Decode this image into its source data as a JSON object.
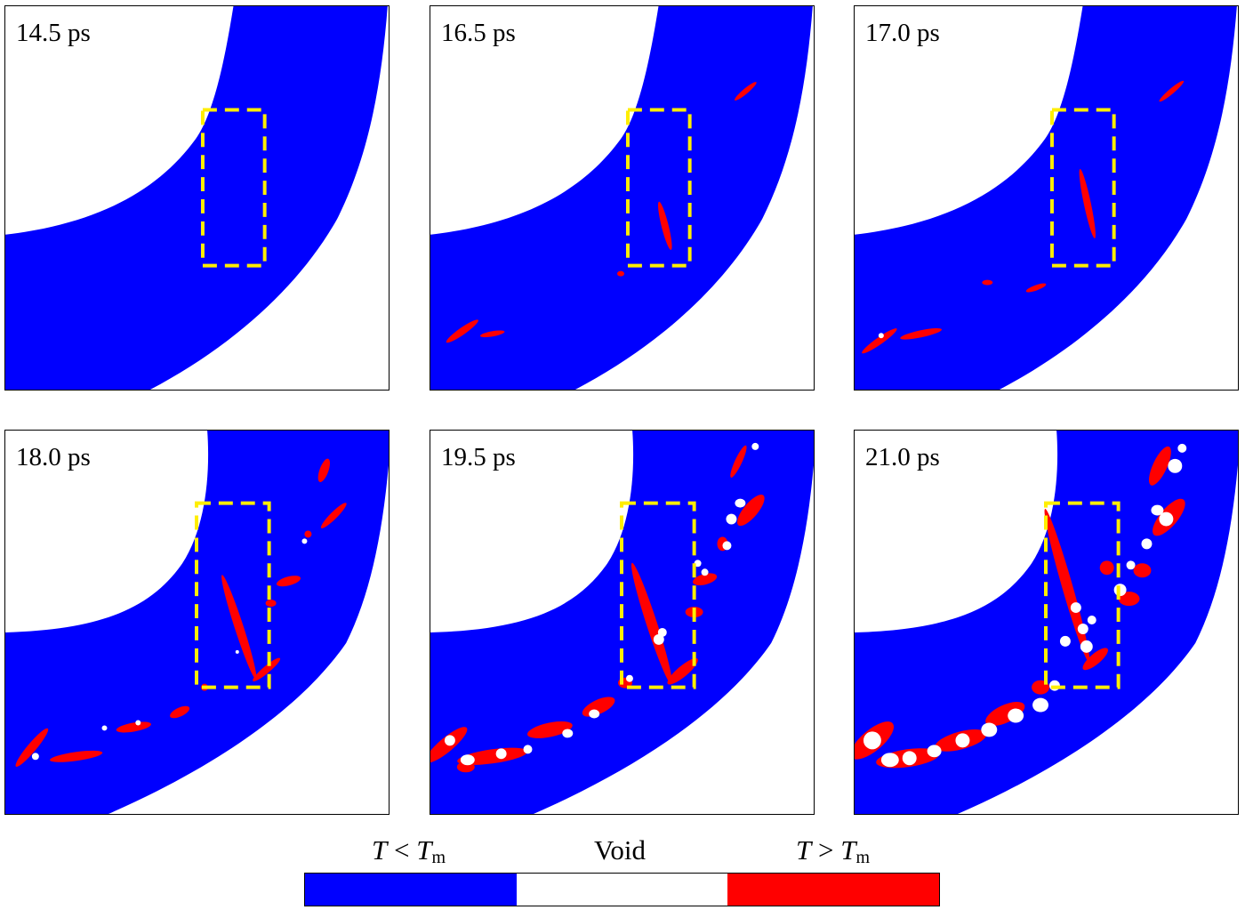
{
  "panels": [
    {
      "time": "14.5 ps"
    },
    {
      "time": "16.5 ps"
    },
    {
      "time": "17.0 ps"
    },
    {
      "time": "18.0 ps"
    },
    {
      "time": "19.5 ps"
    },
    {
      "time": "21.0 ps"
    }
  ],
  "legend": {
    "cold": {
      "var": "T",
      "op": " < ",
      "ref": "T",
      "sub": "m",
      "color": "#0000ff"
    },
    "void": {
      "label": "Void",
      "color": "#ffffff"
    },
    "hot": {
      "var": "T",
      "op": " > ",
      "ref": "T",
      "sub": "m",
      "color": "#ff0000"
    }
  },
  "colors": {
    "material": "#0000ff",
    "hot": "#ff0000",
    "void": "#ffffff",
    "box": "#ffee00"
  }
}
